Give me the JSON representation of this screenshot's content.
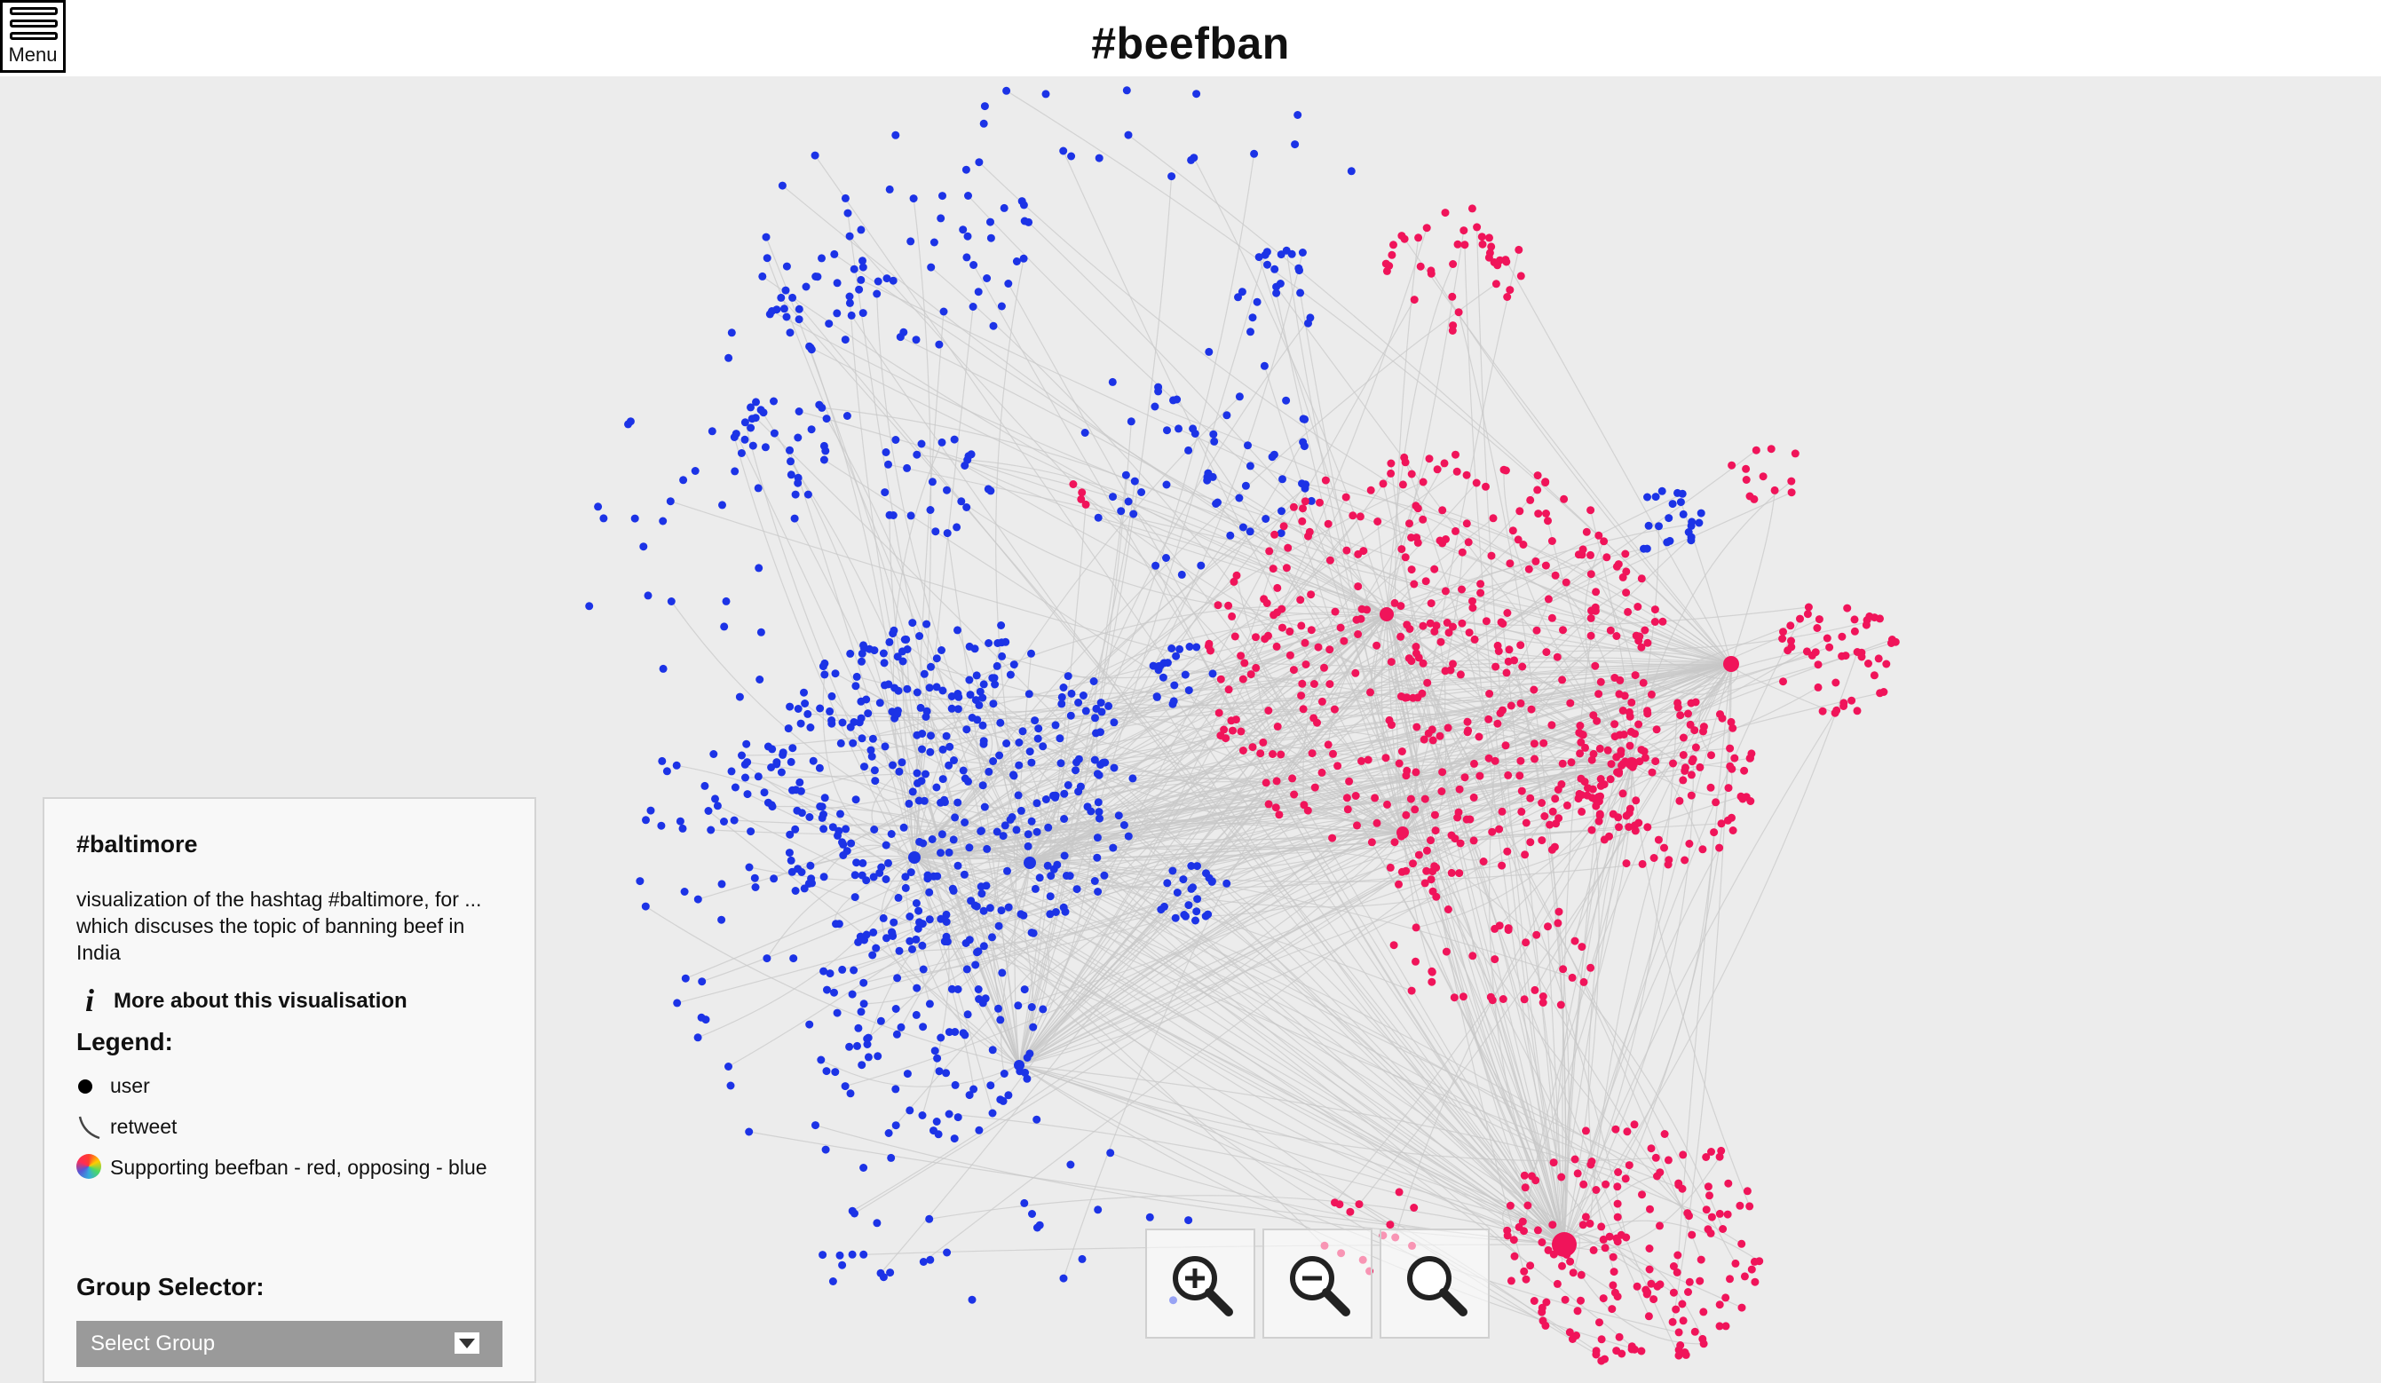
{
  "header": {
    "title": "#beefban"
  },
  "menu": {
    "label": "Menu"
  },
  "panel": {
    "title": "#baltimore",
    "description": "visualization of the hashtag #baltimore, for ... which discuses the topic of banning beef in India",
    "more_link": "More about this visualisation",
    "legend_title": "Legend:",
    "legend": {
      "user": "user",
      "retweet": "retweet",
      "color": "Supporting beefban - red, opposing - blue"
    },
    "group_title": "Group Selector:",
    "group_select_value": "Select Group"
  },
  "graph": {
    "colors": {
      "supporting": "#f0145a",
      "opposing": "#1c33e6",
      "edges": "#c8c8c8",
      "background": "#ececec"
    }
  },
  "zoom": {
    "in_icon": "zoom-in-icon",
    "out_icon": "zoom-out-icon",
    "reset_icon": "zoom-reset-icon"
  }
}
